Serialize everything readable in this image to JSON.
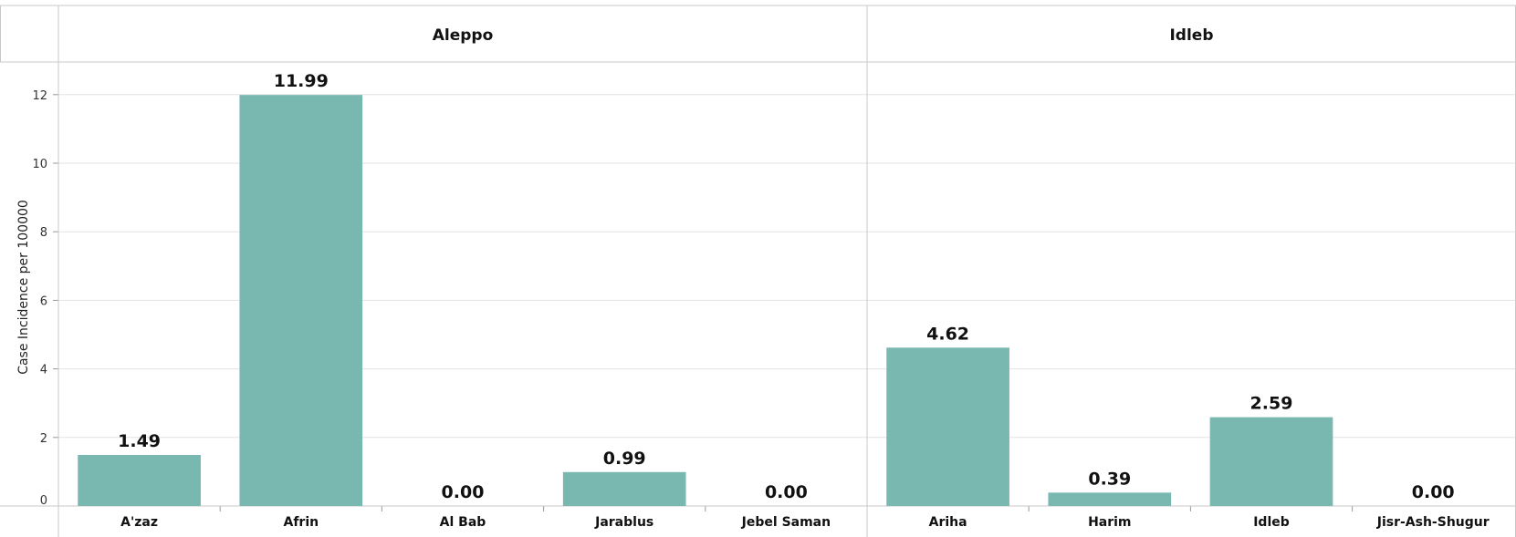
{
  "chart_data": {
    "type": "bar",
    "ylabel": "Case Incidence per 100000",
    "ylim": [
      0,
      12.5
    ],
    "yticks": [
      0,
      2,
      4,
      6,
      8,
      10,
      12
    ],
    "grid": true,
    "bar_color": "#79b7b1",
    "panels": [
      {
        "title": "Aleppo",
        "categories": [
          "A'zaz",
          "Afrin",
          "Al Bab",
          "Jarablus",
          "Jebel Saman"
        ],
        "values": [
          1.49,
          11.99,
          0.0,
          0.99,
          0.0
        ],
        "labels": [
          "1.49",
          "11.99",
          "0.00",
          "0.99",
          "0.00"
        ]
      },
      {
        "title": "Idleb",
        "categories": [
          "Ariha",
          "Harim",
          "Idleb",
          "Jisr-Ash-Shugur"
        ],
        "values": [
          4.62,
          0.39,
          2.59,
          0.0
        ],
        "labels": [
          "4.62",
          "0.39",
          "2.59",
          "0.00"
        ]
      }
    ]
  }
}
